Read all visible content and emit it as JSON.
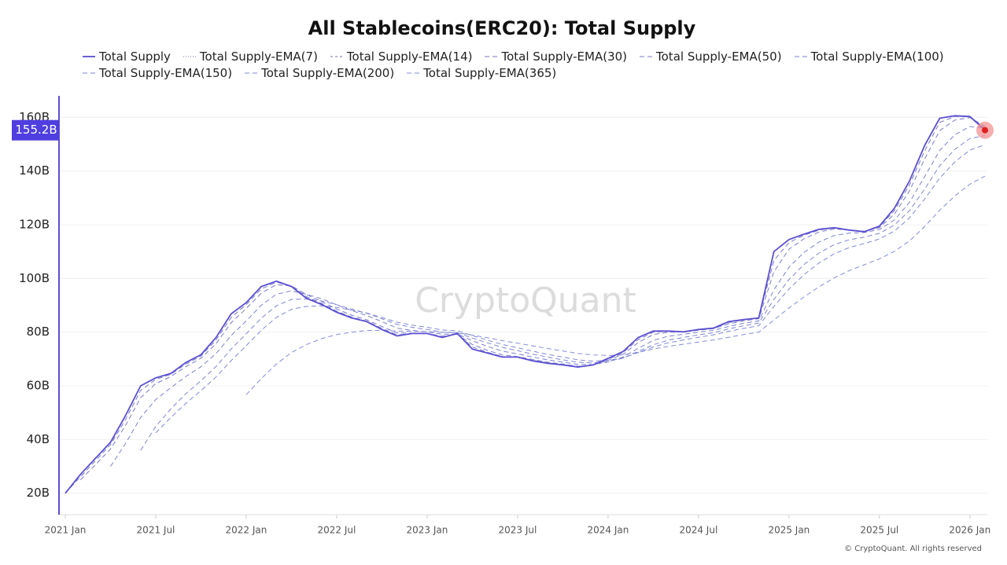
{
  "chart_data": {
    "type": "line",
    "title": "All Stablecoins(ERC20): Total Supply",
    "watermark": "CryptoQuant",
    "copyright": "© CryptoQuant. All rights reserved",
    "x": [
      "2021-01",
      "2021-02",
      "2021-03",
      "2021-04",
      "2021-05",
      "2021-06",
      "2021-07",
      "2021-08",
      "2021-09",
      "2021-10",
      "2021-11",
      "2021-12",
      "2022-01",
      "2022-02",
      "2022-03",
      "2022-04",
      "2022-05",
      "2022-06",
      "2022-07",
      "2022-08",
      "2022-09",
      "2022-10",
      "2022-11",
      "2022-12",
      "2023-01",
      "2023-02",
      "2023-03",
      "2023-04",
      "2023-05",
      "2023-06",
      "2023-07",
      "2023-08",
      "2023-09",
      "2023-10",
      "2023-11",
      "2023-12",
      "2024-01",
      "2024-02",
      "2024-03",
      "2024-04",
      "2024-05",
      "2024-06",
      "2024-07",
      "2024-08",
      "2024-09",
      "2024-10",
      "2024-11",
      "2024-12",
      "2025-01",
      "2025-02",
      "2025-03",
      "2025-04",
      "2025-05",
      "2025-06",
      "2025-07",
      "2025-08",
      "2025-09",
      "2025-10",
      "2025-11",
      "2025-12",
      "2026-01",
      "2026-02"
    ],
    "xlim": [
      "2021-01",
      "2026-02"
    ],
    "xticks": [
      {
        "value": "2021-01",
        "label": "2021 Jan"
      },
      {
        "value": "2021-07",
        "label": "2021 Jul"
      },
      {
        "value": "2022-01",
        "label": "2022 Jan"
      },
      {
        "value": "2022-07",
        "label": "2022 Jul"
      },
      {
        "value": "2023-01",
        "label": "2023 Jan"
      },
      {
        "value": "2023-07",
        "label": "2023 Jul"
      },
      {
        "value": "2024-01",
        "label": "2024 Jan"
      },
      {
        "value": "2024-07",
        "label": "2024 Jul"
      },
      {
        "value": "2025-01",
        "label": "2025 Jan"
      },
      {
        "value": "2025-07",
        "label": "2025 Jul"
      },
      {
        "value": "2026-01",
        "label": "2026 Jan"
      }
    ],
    "ylim": [
      12,
      168
    ],
    "yticks": [
      {
        "value": 20,
        "label": "20B"
      },
      {
        "value": 40,
        "label": "40B"
      },
      {
        "value": 60,
        "label": "60B"
      },
      {
        "value": 80,
        "label": "80B"
      },
      {
        "value": 100,
        "label": "100B"
      },
      {
        "value": 120,
        "label": "120B"
      },
      {
        "value": 140,
        "label": "140B"
      },
      {
        "value": 160,
        "label": "160B"
      }
    ],
    "grid": true,
    "marker": {
      "value": 155.2,
      "label": "155.2B"
    },
    "series": [
      {
        "name": "Total Supply",
        "color": "#5b4fd1",
        "dash": "none",
        "values": [
          20,
          27,
          33,
          39,
          49,
          60,
          63,
          64.6,
          68.7,
          71.6,
          78,
          86.8,
          91,
          97,
          99,
          97,
          92.6,
          90.3,
          87.4,
          85.3,
          83.9,
          81,
          78.6,
          79.5,
          79.5,
          78,
          79.5,
          73.7,
          72.2,
          70.7,
          70.7,
          69.3,
          68.4,
          67.8,
          67,
          67.8,
          70.2,
          72.8,
          78,
          80.4,
          80.4,
          80.1,
          81,
          81.5,
          83.9,
          84.7,
          85.3,
          110,
          114.5,
          116.5,
          118.3,
          118.9,
          118,
          117.4,
          119.5,
          126.2,
          136.4,
          149.5,
          159.7,
          160.6,
          160.3,
          155.3
        ]
      },
      {
        "name": "Total Supply-EMA(7)",
        "color": "#6f6fb0",
        "dash": "1 2",
        "values": [
          20,
          27,
          33,
          39,
          49,
          60,
          63,
          64.6,
          68.7,
          71.6,
          78,
          86.8,
          91,
          97,
          99,
          97,
          92.6,
          90.3,
          87.4,
          85.3,
          83.9,
          81,
          78.6,
          79.5,
          79.5,
          78,
          79.5,
          73.7,
          72.2,
          70.7,
          70.7,
          69.3,
          68.4,
          67.8,
          67,
          67.8,
          70.2,
          72.8,
          78,
          80.4,
          80.4,
          80.1,
          81,
          81.5,
          83.9,
          84.7,
          85.3,
          110,
          114.5,
          116.5,
          118.3,
          118.9,
          118,
          117.4,
          119.5,
          126.2,
          136.4,
          149.5,
          159.7,
          160.6,
          160.3,
          155.3
        ]
      },
      {
        "name": "Total Supply-EMA(14)",
        "color": "#7070b8",
        "dash": "3 3",
        "values": [
          20,
          27,
          33,
          39,
          49,
          60,
          63,
          64.6,
          68.7,
          71.6,
          78,
          86.8,
          91,
          97,
          99,
          97,
          92.6,
          90.3,
          87.4,
          85.3,
          83.9,
          81,
          78.6,
          79.5,
          79.5,
          78,
          79.5,
          73.7,
          72.2,
          70.7,
          70.7,
          69.3,
          68.4,
          67.8,
          67,
          67.8,
          70.2,
          72.8,
          78,
          80.4,
          80.4,
          80.1,
          81,
          81.5,
          83.9,
          84.7,
          85.3,
          110,
          114.5,
          116.5,
          118.3,
          118.9,
          118,
          117.4,
          119.5,
          126.2,
          136.4,
          149.5,
          159.7,
          160.6,
          160.3,
          155.3
        ]
      },
      {
        "name": "Total Supply-EMA(30)",
        "color": "#7577c4",
        "dash": "6 4",
        "values": [
          20,
          26.1,
          32.1,
          38.1,
          47.5,
          58.3,
          62.4,
          64.3,
          68.1,
          71.1,
          77.1,
          85.5,
          90.3,
          96.1,
          98.6,
          97.2,
          93.2,
          90.7,
          87.8,
          85.6,
          84.1,
          81.4,
          79.0,
          79.4,
          79.5,
          78.2,
          79.3,
          74.5,
          72.5,
          70.9,
          70.7,
          69.5,
          68.5,
          67.9,
          67.1,
          67.7,
          69.9,
          72.4,
          77.2,
          80.0,
          80.3,
          80.1,
          80.9,
          81.4,
          83.6,
          84.6,
          85.2,
          106.7,
          113.4,
          116.1,
          118.0,
          118.8,
          118.1,
          117.5,
          119.2,
          125.3,
          134.9,
          147.5,
          158.1,
          160.3,
          160.3,
          156.0
        ]
      },
      {
        "name": "Total Supply-EMA(50)",
        "color": "#787cc8",
        "dash": "6 4",
        "values": [
          null,
          25,
          30.6,
          36.5,
          45.3,
          55.6,
          60.8,
          63.5,
          67.1,
          70.3,
          75.7,
          83.5,
          88.8,
          94.5,
          97.7,
          97.2,
          94.0,
          91.4,
          88.6,
          86.3,
          84.6,
          82.1,
          79.7,
          79.6,
          79.5,
          78.5,
          79.2,
          75.4,
          73.2,
          71.5,
          70.9,
          69.8,
          68.8,
          68.1,
          67.3,
          67.7,
          69.5,
          71.8,
          76.1,
          79.1,
          80.0,
          80.1,
          80.7,
          81.3,
          83.1,
          84.2,
          85.0,
          102.5,
          110.9,
          114.8,
          117.3,
          118.4,
          118.1,
          117.6,
          118.9,
          124.0,
          132.7,
          144.5,
          155.1,
          159.0,
          159.9,
          156.7
        ]
      },
      {
        "name": "Total Supply-EMA(100)",
        "color": "#7b80cc",
        "dash": "6 4",
        "values": [
          null,
          null,
          null,
          30,
          38.6,
          48.2,
          54.9,
          59.3,
          63.5,
          67.1,
          72.0,
          78.7,
          84.2,
          90.0,
          94.1,
          95.4,
          94.1,
          92.4,
          90.2,
          88.0,
          86.2,
          83.9,
          81.5,
          80.6,
          80.1,
          79.2,
          79.3,
          76.8,
          74.7,
          72.9,
          71.9,
          70.7,
          69.7,
          68.8,
          68.0,
          67.9,
          68.9,
          70.7,
          74.0,
          76.9,
          78.5,
          79.2,
          80.0,
          80.7,
          82.1,
          83.3,
          84.2,
          95.8,
          104.2,
          109.7,
          113.6,
          116.0,
          116.9,
          117.1,
          118.2,
          121.8,
          128.4,
          137.9,
          147.7,
          153.5,
          156.6,
          156.0
        ]
      },
      {
        "name": "Total Supply-EMA(150)",
        "color": "#7e84d0",
        "dash": "6 4",
        "values": [
          null,
          null,
          null,
          null,
          null,
          36,
          44.9,
          51.4,
          57.1,
          61.9,
          67.2,
          73.7,
          79.4,
          85.2,
          89.8,
          92.2,
          92.3,
          91.6,
          90.2,
          88.6,
          87.0,
          85.0,
          82.9,
          81.8,
          81.0,
          80.0,
          79.8,
          77.8,
          76.0,
          74.3,
          73.1,
          71.8,
          70.7,
          69.7,
          68.8,
          68.5,
          69.1,
          70.3,
          72.8,
          75.3,
          77.0,
          78.0,
          79.0,
          79.8,
          81.2,
          82.4,
          83.4,
          92.2,
          99.6,
          105.2,
          109.5,
          112.6,
          114.4,
          115.4,
          116.8,
          119.9,
          125.3,
          133.3,
          142.0,
          148.1,
          152.1,
          153.2
        ]
      },
      {
        "name": "Total Supply-EMA(200)",
        "color": "#8188d4",
        "dash": "6 4",
        "values": [
          null,
          null,
          null,
          null,
          null,
          null,
          42.5,
          48.2,
          53.5,
          58.2,
          63.3,
          69.4,
          75.0,
          80.7,
          85.5,
          88.5,
          89.6,
          89.8,
          89.2,
          88.2,
          87.1,
          85.5,
          83.7,
          82.6,
          81.8,
          80.8,
          80.5,
          78.7,
          77.0,
          75.4,
          74.2,
          72.9,
          71.7,
          70.7,
          69.7,
          69.2,
          69.5,
          70.4,
          72.4,
          74.5,
          76.0,
          77.1,
          78.1,
          79.0,
          80.3,
          81.4,
          82.4,
          89.6,
          96.1,
          101.4,
          105.8,
          109.2,
          111.5,
          113.0,
          114.7,
          117.7,
          122.6,
          129.6,
          137.4,
          143.4,
          147.8,
          149.8
        ]
      },
      {
        "name": "Total Supply-EMA(365)",
        "color": "#848cd8",
        "dash": "6 4",
        "values": [
          null,
          null,
          null,
          null,
          null,
          null,
          null,
          null,
          null,
          null,
          null,
          null,
          56.7,
          62.7,
          68.1,
          72.4,
          75.4,
          77.6,
          79.1,
          80.0,
          80.6,
          80.7,
          80.4,
          80.3,
          80.2,
          79.9,
          79.8,
          78.9,
          77.9,
          76.8,
          75.9,
          74.9,
          73.9,
          73.0,
          72.1,
          71.5,
          71.3,
          71.5,
          72.5,
          73.7,
          74.7,
          75.5,
          76.3,
          77.1,
          78.1,
          79.1,
          80.0,
          84.5,
          89.0,
          93.1,
          96.9,
          100.2,
          102.9,
          105.1,
          107.3,
          110.1,
          114.0,
          119.3,
          125.4,
          130.7,
          135.1,
          138.1
        ]
      }
    ]
  }
}
